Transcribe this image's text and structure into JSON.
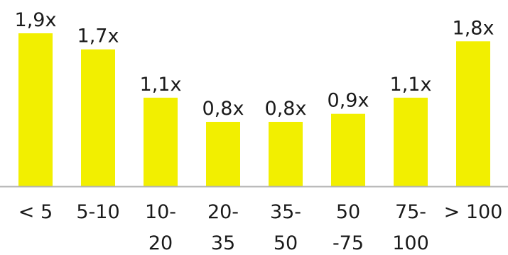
{
  "chart_data": {
    "type": "bar",
    "categories": [
      [
        "< 5"
      ],
      [
        "5-10"
      ],
      [
        "10-",
        "20"
      ],
      [
        "20-",
        "35"
      ],
      [
        "35-",
        "50"
      ],
      [
        "50",
        "-75"
      ],
      [
        "75-",
        "100"
      ],
      [
        "> 100"
      ]
    ],
    "values": [
      1.9,
      1.7,
      1.1,
      0.8,
      0.8,
      0.9,
      1.1,
      1.8
    ],
    "data_labels": [
      "1,9x",
      "1,7x",
      "1,1x",
      "0,8x",
      "0,8x",
      "0,9x",
      "1,1x",
      "1,8x"
    ],
    "title": "",
    "xlabel": "",
    "ylabel": "",
    "ylim": [
      0,
      2.0
    ],
    "grid": false,
    "legend": "none",
    "colors": {
      "bar": "#f2ef00",
      "axis": "#b3b3b3",
      "text": "#1a1a1a"
    }
  }
}
